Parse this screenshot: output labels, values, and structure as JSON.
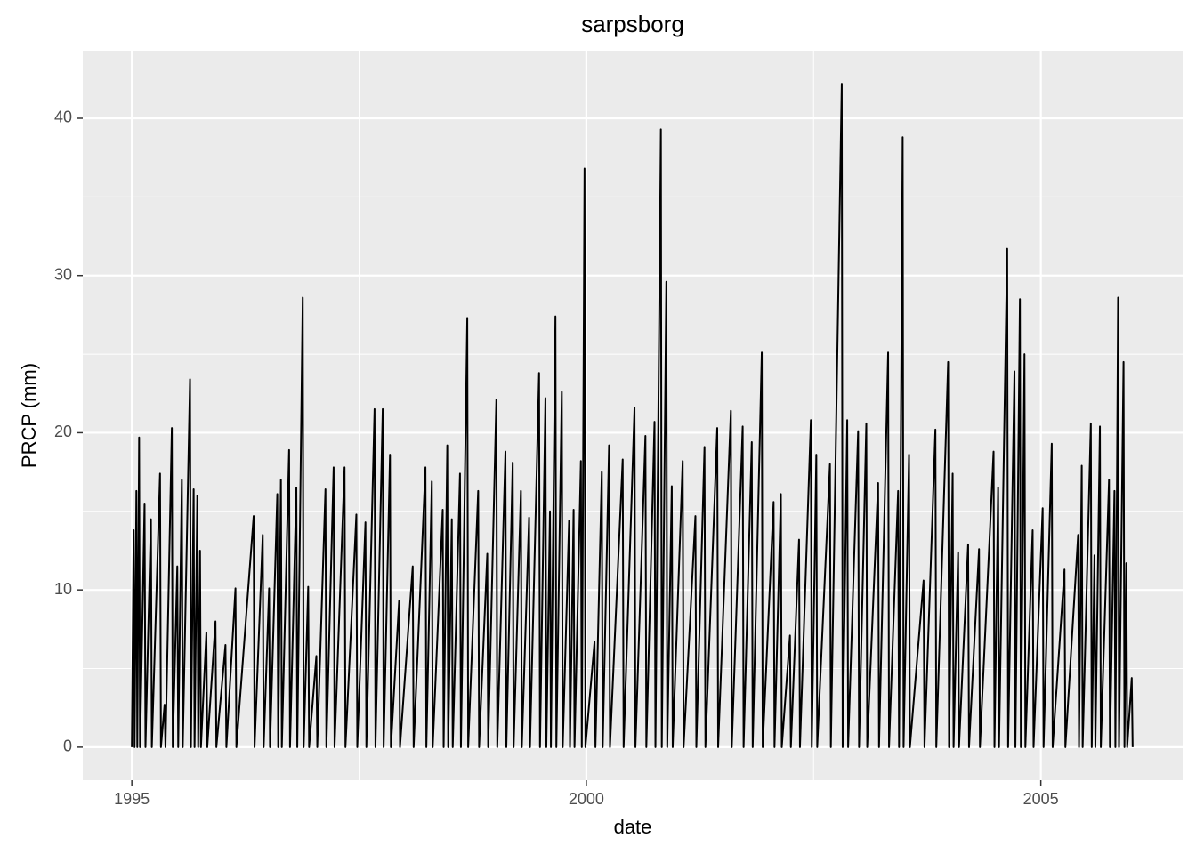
{
  "chart_data": {
    "type": "line",
    "title": "sarpsborg",
    "x_label": "date",
    "y_label": "PRCP (mm)",
    "color": "#000000",
    "grid": true,
    "xlim": [
      1994.46,
      2006.56
    ],
    "xticks": [
      1995,
      2000,
      2005
    ],
    "xminor": [
      1997.5,
      2002.5
    ],
    "ylim": [
      -2.1,
      44.3
    ],
    "yticks": [
      0,
      10,
      20,
      30,
      40
    ],
    "yminor": [
      5,
      15,
      25,
      35
    ],
    "x": [
      1995,
      1995.02,
      1995.03,
      1995.05,
      1995.06,
      1995.08,
      1995.09,
      1995.14,
      1995.15,
      1995.21,
      1995.22,
      1995.31,
      1995.32,
      1995.36,
      1995.37,
      1995.44,
      1995.45,
      1995.5,
      1995.51,
      1995.55,
      1995.56,
      1995.64,
      1995.65,
      1995.68,
      1995.69,
      1995.72,
      1995.73,
      1995.75,
      1995.76,
      1995.82,
      1995.83,
      1995.92,
      1995.93,
      1996.03,
      1996.04,
      1996.14,
      1996.15,
      1996.34,
      1996.35,
      1996.44,
      1996.45,
      1996.51,
      1996.52,
      1996.6,
      1996.61,
      1996.64,
      1996.65,
      1996.73,
      1996.74,
      1996.81,
      1996.82,
      1996.88,
      1996.89,
      1996.94,
      1996.95,
      1997.03,
      1997.04,
      1997.13,
      1997.14,
      1997.22,
      1997.23,
      1997.34,
      1997.35,
      1997.47,
      1997.48,
      1997.57,
      1997.58,
      1997.67,
      1997.68,
      1997.76,
      1997.77,
      1997.84,
      1997.85,
      1997.94,
      1997.95,
      1998.09,
      1998.1,
      1998.23,
      1998.24,
      1998.3,
      1998.31,
      1998.42,
      1998.43,
      1998.47,
      1998.48,
      1998.52,
      1998.53,
      1998.61,
      1998.62,
      1998.69,
      1998.7,
      1998.81,
      1998.82,
      1998.91,
      1998.92,
      1999.01,
      1999.02,
      1999.11,
      1999.12,
      1999.19,
      1999.2,
      1999.28,
      1999.29,
      1999.37,
      1999.38,
      1999.48,
      1999.49,
      1999.55,
      1999.56,
      1999.6,
      1999.61,
      1999.66,
      1999.67,
      1999.73,
      1999.74,
      1999.81,
      1999.82,
      1999.86,
      1999.87,
      1999.94,
      1999.95,
      1999.98,
      1999.99,
      2000.09,
      2000.1,
      2000.17,
      2000.18,
      2000.25,
      2000.26,
      2000.4,
      2000.41,
      2000.53,
      2000.54,
      2000.65,
      2000.66,
      2000.75,
      2000.76,
      2000.82,
      2000.83,
      2000.88,
      2000.89,
      2000.94,
      2000.95,
      2001.06,
      2001.07,
      2001.2,
      2001.21,
      2001.3,
      2001.31,
      2001.44,
      2001.45,
      2001.59,
      2001.6,
      2001.72,
      2001.73,
      2001.82,
      2001.83,
      2001.93,
      2001.94,
      2002.06,
      2002.07,
      2002.14,
      2002.15,
      2002.24,
      2002.25,
      2002.34,
      2002.35,
      2002.47,
      2002.48,
      2002.53,
      2002.54,
      2002.68,
      2002.69,
      2002.81,
      2002.82,
      2002.87,
      2002.88,
      2002.99,
      2003,
      2003.08,
      2003.09,
      2003.21,
      2003.22,
      2003.32,
      2003.33,
      2003.43,
      2003.44,
      2003.48,
      2003.49,
      2003.55,
      2003.56,
      2003.71,
      2003.72,
      2003.84,
      2003.85,
      2003.98,
      2003.99,
      2004.03,
      2004.04,
      2004.09,
      2004.1,
      2004.2,
      2004.21,
      2004.32,
      2004.33,
      2004.48,
      2004.49,
      2004.53,
      2004.54,
      2004.63,
      2004.64,
      2004.71,
      2004.72,
      2004.77,
      2004.78,
      2004.82,
      2004.83,
      2004.91,
      2004.92,
      2005.02,
      2005.03,
      2005.12,
      2005.13,
      2005.26,
      2005.27,
      2005.41,
      2005.42,
      2005.45,
      2005.46,
      2005.55,
      2005.56,
      2005.59,
      2005.6,
      2005.65,
      2005.66,
      2005.75,
      2005.76,
      2005.81,
      2005.82,
      2005.85,
      2005.86,
      2005.91,
      2005.92,
      2005.94,
      2005.95,
      2006,
      2006.01
    ],
    "values": [
      0,
      13.8,
      0,
      16.3,
      0,
      19.7,
      0,
      15.5,
      0,
      14.5,
      0,
      17.4,
      0,
      2.7,
      0,
      20.3,
      0,
      11.5,
      0,
      17.0,
      0,
      23.4,
      0,
      16.4,
      0,
      16.0,
      0,
      12.5,
      0,
      7.3,
      0,
      8.0,
      0,
      6.5,
      0,
      10.1,
      0,
      14.7,
      0,
      13.5,
      0,
      10.1,
      0,
      16.1,
      0,
      17.0,
      0,
      18.9,
      0,
      16.5,
      0,
      28.6,
      0,
      10.2,
      0,
      5.8,
      0,
      16.4,
      0,
      17.8,
      0,
      17.8,
      0,
      14.8,
      0,
      14.3,
      0,
      21.5,
      0,
      21.5,
      0,
      18.6,
      0,
      9.3,
      0,
      11.5,
      0,
      17.8,
      0,
      16.9,
      0,
      15.1,
      0,
      19.2,
      0,
      14.5,
      0,
      17.4,
      0,
      27.3,
      0,
      16.3,
      0,
      12.3,
      0,
      22.1,
      0,
      18.8,
      0,
      18.1,
      0,
      16.3,
      0,
      14.6,
      0,
      23.8,
      0,
      22.2,
      0,
      15.0,
      0,
      27.4,
      0,
      22.6,
      0,
      14.4,
      0,
      15.1,
      0,
      18.2,
      0,
      36.8,
      0,
      6.7,
      0,
      17.5,
      0,
      19.2,
      0,
      18.3,
      0,
      21.6,
      0,
      19.8,
      0,
      20.7,
      0,
      39.3,
      0,
      29.6,
      0,
      16.6,
      0,
      18.2,
      0,
      14.7,
      0,
      19.1,
      0,
      20.3,
      0,
      21.4,
      0,
      20.4,
      0,
      19.4,
      0,
      25.1,
      0,
      15.6,
      0,
      16.1,
      0,
      7.1,
      0,
      13.2,
      0,
      20.8,
      0,
      18.6,
      0,
      18.0,
      0,
      42.2,
      0,
      20.8,
      0,
      20.1,
      0,
      20.6,
      0,
      16.8,
      0,
      25.1,
      0,
      16.3,
      0,
      38.8,
      0,
      18.6,
      0,
      10.6,
      0,
      20.2,
      0,
      24.5,
      0,
      17.4,
      0,
      12.4,
      0,
      12.9,
      0,
      12.6,
      0,
      18.8,
      0,
      16.5,
      0,
      31.7,
      0,
      23.9,
      0,
      28.5,
      0,
      25.0,
      0,
      13.8,
      0,
      15.2,
      0,
      19.3,
      0,
      11.3,
      0,
      13.5,
      0,
      17.9,
      0,
      20.6,
      0,
      12.2,
      0,
      20.4,
      0,
      17.0,
      0,
      16.3,
      0,
      28.6,
      0,
      24.5,
      0,
      11.7,
      0,
      4.4,
      0
    ]
  }
}
